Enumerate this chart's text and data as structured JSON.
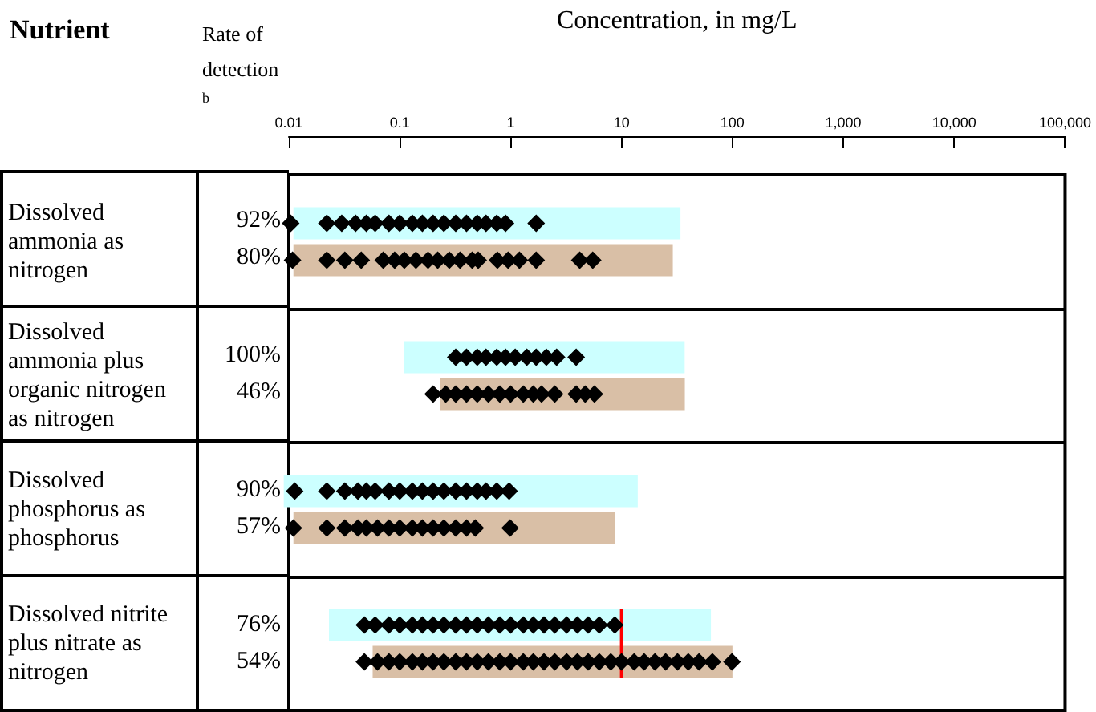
{
  "chart_data": {
    "type": "bar",
    "orientation": "horizontal",
    "log": "x",
    "xlabel": "Concentration, in mg/L",
    "ylabel": "Nutrient",
    "categories": [
      "Dissolved ammonia as nitrogen",
      "Dissolved ammonia plus organic nitrogen as nitrogen",
      "Dissolved phosphorus as phosphorus",
      "Dissolved nitrite plus nitrate as nitrogen"
    ],
    "xlim": [
      0.01,
      100000
    ],
    "xticks": [
      0.01,
      0.1,
      1,
      10,
      100,
      {
        "value": 1000,
        "label": "1,000"
      },
      {
        "value": 10000,
        "label": "10,000"
      },
      {
        "value": 100000,
        "label": "100,000"
      }
    ],
    "series": [
      {
        "color": "#ccffff",
        "base": [
          0.011,
          0.11,
          0.009,
          0.023
        ],
        "values": [
          34,
          37,
          14,
          64
        ]
      },
      {
        "color": "#d9bfa6",
        "base": [
          0.011,
          0.23,
          0.011,
          0.057
        ],
        "values": [
          29,
          37,
          8.7,
          100
        ]
      },
      {
        "type": "scatter",
        "color": "#000000",
        "marker": "diamond",
        "x": [
          "Dissolved ammonia as nitrogen",
          "Dissolved ammonia as nitrogen",
          "Dissolved ammonia as nitrogen",
          "Dissolved ammonia as nitrogen",
          "Dissolved ammonia as nitrogen",
          "Dissolved ammonia as nitrogen",
          "Dissolved ammonia as nitrogen",
          "Dissolved ammonia as nitrogen",
          "Dissolved ammonia as nitrogen",
          "Dissolved ammonia as nitrogen",
          "Dissolved ammonia as nitrogen",
          "Dissolved ammonia as nitrogen",
          "Dissolved ammonia as nitrogen",
          "Dissolved ammonia as nitrogen",
          "Dissolved ammonia as nitrogen",
          "Dissolved ammonia as nitrogen",
          "Dissolved ammonia as nitrogen",
          "Dissolved ammonia as nitrogen",
          "Dissolved ammonia as nitrogen",
          "Dissolved ammonia plus organic nitrogen as nitrogen",
          "Dissolved ammonia plus organic nitrogen as nitrogen",
          "Dissolved ammonia plus organic nitrogen as nitrogen",
          "Dissolved ammonia plus organic nitrogen as nitrogen",
          "Dissolved ammonia plus organic nitrogen as nitrogen",
          "Dissolved ammonia plus organic nitrogen as nitrogen",
          "Dissolved ammonia plus organic nitrogen as nitrogen",
          "Dissolved ammonia plus organic nitrogen as nitrogen",
          "Dissolved ammonia plus organic nitrogen as nitrogen",
          "Dissolved ammonia plus organic nitrogen as nitrogen",
          "Dissolved ammonia plus organic nitrogen as nitrogen",
          "Dissolved ammonia plus organic nitrogen as nitrogen",
          "Dissolved phosphorus as phosphorus",
          "Dissolved phosphorus as phosphorus",
          "Dissolved phosphorus as phosphorus",
          "Dissolved phosphorus as phosphorus",
          "Dissolved phosphorus as phosphorus",
          "Dissolved phosphorus as phosphorus",
          "Dissolved phosphorus as phosphorus",
          "Dissolved phosphorus as phosphorus",
          "Dissolved phosphorus as phosphorus",
          "Dissolved phosphorus as phosphorus",
          "Dissolved phosphorus as phosphorus",
          "Dissolved phosphorus as phosphorus",
          "Dissolved phosphorus as phosphorus",
          "Dissolved phosphorus as phosphorus",
          "Dissolved phosphorus as phosphorus",
          "Dissolved phosphorus as phosphorus",
          "Dissolved phosphorus as phosphorus",
          "Dissolved phosphorus as phosphorus",
          "Dissolved nitrite plus nitrate as nitrogen",
          "Dissolved nitrite plus nitrate as nitrogen",
          "Dissolved nitrite plus nitrate as nitrogen",
          "Dissolved nitrite plus nitrate as nitrogen",
          "Dissolved nitrite plus nitrate as nitrogen",
          "Dissolved nitrite plus nitrate as nitrogen",
          "Dissolved nitrite plus nitrate as nitrogen",
          "Dissolved nitrite plus nitrate as nitrogen",
          "Dissolved nitrite plus nitrate as nitrogen",
          "Dissolved nitrite plus nitrate as nitrogen",
          "Dissolved nitrite plus nitrate as nitrogen",
          "Dissolved nitrite plus nitrate as nitrogen",
          "Dissolved nitrite plus nitrate as nitrogen",
          "Dissolved nitrite plus nitrate as nitrogen",
          "Dissolved nitrite plus nitrate as nitrogen",
          "Dissolved nitrite plus nitrate as nitrogen",
          "Dissolved nitrite plus nitrate as nitrogen",
          "Dissolved nitrite plus nitrate as nitrogen",
          "Dissolved nitrite plus nitrate as nitrogen",
          "Dissolved nitrite plus nitrate as nitrogen",
          "Dissolved nitrite plus nitrate as nitrogen",
          "Dissolved nitrite plus nitrate as nitrogen",
          "Dissolved nitrite plus nitrate as nitrogen"
        ],
        "values": [
          0.0104,
          0.022,
          0.03,
          0.04,
          0.05,
          0.06,
          0.08,
          0.1,
          0.13,
          0.16,
          0.2,
          0.25,
          0.32,
          0.4,
          0.5,
          0.6,
          0.75,
          0.9,
          1.7,
          0.32,
          0.4,
          0.5,
          0.6,
          0.75,
          0.9,
          1.1,
          1.4,
          1.7,
          2.1,
          2.6,
          3.9,
          0.0113,
          0.022,
          0.032,
          0.042,
          0.05,
          0.06,
          0.08,
          0.1,
          0.13,
          0.16,
          0.2,
          0.25,
          0.32,
          0.4,
          0.5,
          0.6,
          0.75,
          0.97,
          0.048,
          0.06,
          0.08,
          0.1,
          0.13,
          0.16,
          0.2,
          0.25,
          0.32,
          0.4,
          0.5,
          0.63,
          0.8,
          1,
          1.3,
          1.6,
          2,
          2.5,
          3.2,
          4,
          5,
          6.3,
          8.7
        ]
      },
      {
        "type": "scatter",
        "color": "#000000",
        "marker": "diamond",
        "x": [
          "Dissolved ammonia as nitrogen",
          "Dissolved ammonia as nitrogen",
          "Dissolved ammonia as nitrogen",
          "Dissolved ammonia as nitrogen",
          "Dissolved ammonia as nitrogen",
          "Dissolved ammonia as nitrogen",
          "Dissolved ammonia as nitrogen",
          "Dissolved ammonia as nitrogen",
          "Dissolved ammonia as nitrogen",
          "Dissolved ammonia as nitrogen",
          "Dissolved ammonia as nitrogen",
          "Dissolved ammonia as nitrogen",
          "Dissolved ammonia as nitrogen",
          "Dissolved ammonia as nitrogen",
          "Dissolved ammonia as nitrogen",
          "Dissolved ammonia as nitrogen",
          "Dissolved ammonia as nitrogen",
          "Dissolved ammonia as nitrogen",
          "Dissolved ammonia as nitrogen",
          "Dissolved ammonia as nitrogen",
          "Dissolved ammonia plus organic nitrogen as nitrogen",
          "Dissolved ammonia plus organic nitrogen as nitrogen",
          "Dissolved ammonia plus organic nitrogen as nitrogen",
          "Dissolved ammonia plus organic nitrogen as nitrogen",
          "Dissolved ammonia plus organic nitrogen as nitrogen",
          "Dissolved ammonia plus organic nitrogen as nitrogen",
          "Dissolved ammonia plus organic nitrogen as nitrogen",
          "Dissolved ammonia plus organic nitrogen as nitrogen",
          "Dissolved ammonia plus organic nitrogen as nitrogen",
          "Dissolved ammonia plus organic nitrogen as nitrogen",
          "Dissolved ammonia plus organic nitrogen as nitrogen",
          "Dissolved ammonia plus organic nitrogen as nitrogen",
          "Dissolved ammonia plus organic nitrogen as nitrogen",
          "Dissolved ammonia plus organic nitrogen as nitrogen",
          "Dissolved ammonia plus organic nitrogen as nitrogen",
          "Dissolved phosphorus as phosphorus",
          "Dissolved phosphorus as phosphorus",
          "Dissolved phosphorus as phosphorus",
          "Dissolved phosphorus as phosphorus",
          "Dissolved phosphorus as phosphorus",
          "Dissolved phosphorus as phosphorus",
          "Dissolved phosphorus as phosphorus",
          "Dissolved phosphorus as phosphorus",
          "Dissolved phosphorus as phosphorus",
          "Dissolved phosphorus as phosphorus",
          "Dissolved phosphorus as phosphorus",
          "Dissolved phosphorus as phosphorus",
          "Dissolved phosphorus as phosphorus",
          "Dissolved phosphorus as phosphorus",
          "Dissolved phosphorus as phosphorus",
          "Dissolved phosphorus as phosphorus",
          "Dissolved nitrite plus nitrate as nitrogen",
          "Dissolved nitrite plus nitrate as nitrogen",
          "Dissolved nitrite plus nitrate as nitrogen",
          "Dissolved nitrite plus nitrate as nitrogen",
          "Dissolved nitrite plus nitrate as nitrogen",
          "Dissolved nitrite plus nitrate as nitrogen",
          "Dissolved nitrite plus nitrate as nitrogen",
          "Dissolved nitrite plus nitrate as nitrogen",
          "Dissolved nitrite plus nitrate as nitrogen",
          "Dissolved nitrite plus nitrate as nitrogen",
          "Dissolved nitrite plus nitrate as nitrogen",
          "Dissolved nitrite plus nitrate as nitrogen",
          "Dissolved nitrite plus nitrate as nitrogen",
          "Dissolved nitrite plus nitrate as nitrogen",
          "Dissolved nitrite plus nitrate as nitrogen",
          "Dissolved nitrite plus nitrate as nitrogen",
          "Dissolved nitrite plus nitrate as nitrogen",
          "Dissolved nitrite plus nitrate as nitrogen",
          "Dissolved nitrite plus nitrate as nitrogen",
          "Dissolved nitrite plus nitrate as nitrogen",
          "Dissolved nitrite plus nitrate as nitrogen",
          "Dissolved nitrite plus nitrate as nitrogen",
          "Dissolved nitrite plus nitrate as nitrogen",
          "Dissolved nitrite plus nitrate as nitrogen",
          "Dissolved nitrite plus nitrate as nitrogen",
          "Dissolved nitrite plus nitrate as nitrogen",
          "Dissolved nitrite plus nitrate as nitrogen",
          "Dissolved nitrite plus nitrate as nitrogen",
          "Dissolved nitrite plus nitrate as nitrogen",
          "Dissolved nitrite plus nitrate as nitrogen",
          "Dissolved nitrite plus nitrate as nitrogen",
          "Dissolved nitrite plus nitrate as nitrogen",
          "Dissolved nitrite plus nitrate as nitrogen"
        ],
        "values": [
          0.0108,
          0.022,
          0.032,
          0.045,
          0.071,
          0.09,
          0.11,
          0.14,
          0.18,
          0.22,
          0.28,
          0.35,
          0.45,
          0.51,
          0.76,
          0.95,
          1.2,
          1.7,
          4.2,
          5.5,
          0.2,
          0.26,
          0.32,
          0.4,
          0.5,
          0.63,
          0.8,
          1,
          1.3,
          1.6,
          1.9,
          2.5,
          3.9,
          4.7,
          5.7,
          0.011,
          0.022,
          0.032,
          0.042,
          0.05,
          0.063,
          0.08,
          0.1,
          0.13,
          0.16,
          0.2,
          0.25,
          0.32,
          0.4,
          0.48,
          0.99,
          0.048,
          0.063,
          0.08,
          0.1,
          0.13,
          0.16,
          0.2,
          0.25,
          0.32,
          0.4,
          0.5,
          0.63,
          0.8,
          1,
          1.3,
          1.6,
          2,
          2.5,
          3.2,
          4,
          5,
          6.3,
          8,
          10,
          13,
          16,
          20,
          25,
          32,
          40,
          50,
          66,
          99
        ]
      }
    ],
    "ref_lines": [
      {
        "axis": "x",
        "value": 10,
        "color": "#ff0000"
      }
    ],
    "annotations": [
      "Rate of detection $^{b}$",
      "92%",
      "80%",
      "100%",
      "46%",
      "90%",
      "57%",
      "76%",
      "54%"
    ],
    "grid": "y"
  }
}
